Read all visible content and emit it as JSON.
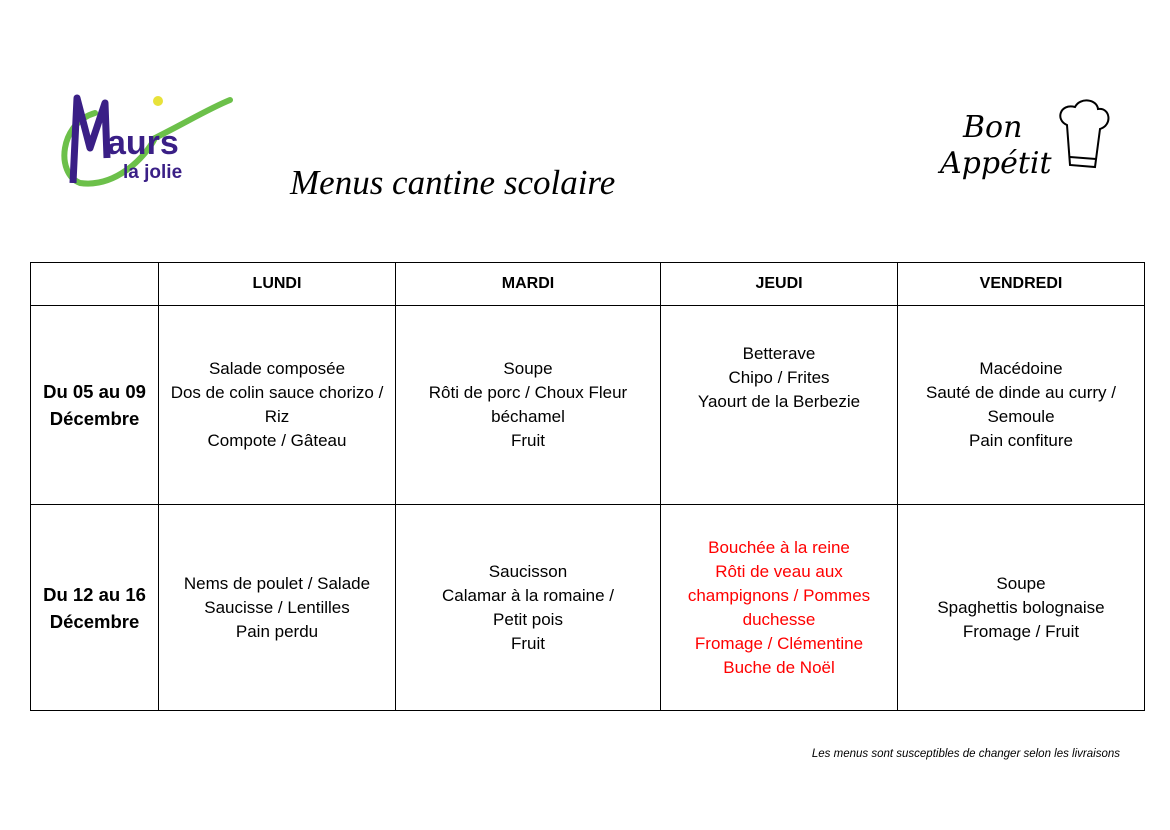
{
  "logos": {
    "left_logo_text": [
      "Maurs",
      "la jolie"
    ],
    "right_logo_text": "Bon Appétit",
    "colors": {
      "purple": "#3a1f86",
      "green": "#6cc04a",
      "yellow": "#e8e23a"
    }
  },
  "title": "Menus cantine scolaire",
  "table": {
    "headers": [
      "",
      "LUNDI",
      "MARDI",
      "JEUDI",
      "VENDREDI"
    ],
    "rows": [
      {
        "week": [
          "Du 05 au 09",
          "Décembre"
        ],
        "days": [
          [
            "Salade composée",
            "Dos de colin sauce chorizo /",
            "Riz",
            "Compote / Gâteau"
          ],
          [
            "Soupe",
            "Rôti de porc / Choux Fleur",
            "béchamel",
            "Fruit"
          ],
          [
            "Betterave",
            "Chipo / Frites",
            "Yaourt de la Berbezie"
          ],
          [
            "Macédoine",
            "Sauté de dinde au curry /",
            "Semoule",
            "Pain confiture"
          ]
        ]
      },
      {
        "week": [
          "Du 12 au 16",
          "Décembre"
        ],
        "days": [
          [
            "Nems de poulet / Salade",
            "Saucisse / Lentilles",
            "Pain perdu"
          ],
          [
            "Saucisson",
            "Calamar à la romaine /",
            "Petit pois",
            "Fruit"
          ],
          [
            "Bouchée à la reine",
            "Rôti de veau aux",
            "champignons / Pommes",
            "duchesse",
            "Fromage / Clémentine",
            "Buche de Noël"
          ],
          [
            "Soupe",
            "Spaghettis bolognaise",
            "Fromage / Fruit"
          ]
        ],
        "highlight_color": "#ff0000"
      }
    ]
  },
  "footer_note": "Les menus sont susceptibles de changer selon les livraisons"
}
